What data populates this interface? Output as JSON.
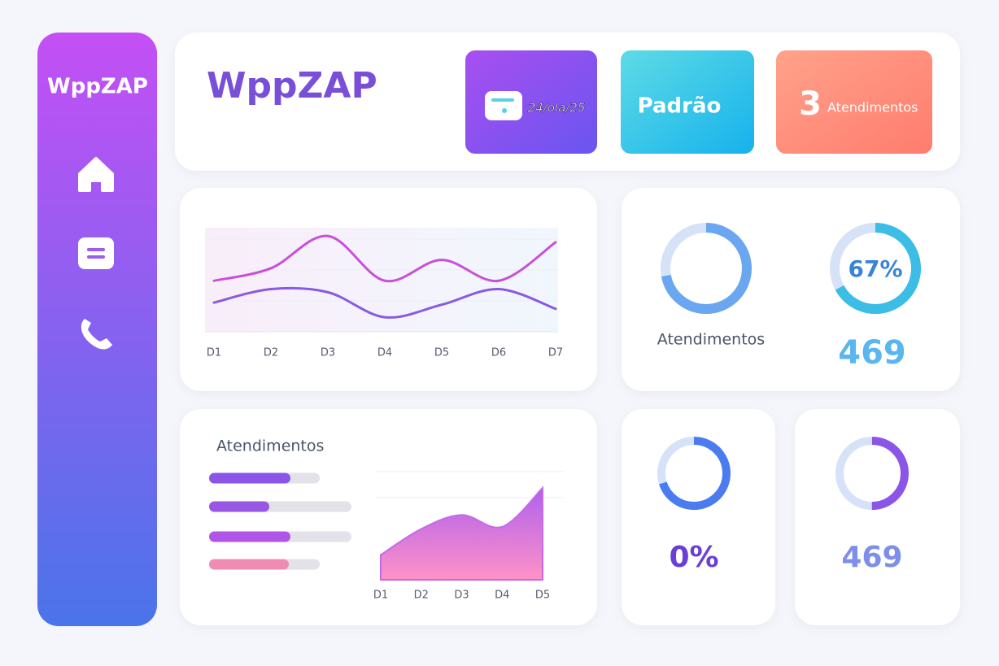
{
  "sidebar": {
    "brand": "WppZAP"
  },
  "header": {
    "title": "WppZAP",
    "date": "24/ola/25",
    "mode": "Padrão",
    "count": 3,
    "count_label": "Atendimentos"
  },
  "line_chart": {
    "type": "line",
    "categories": [
      "D1",
      "D2",
      "D3",
      "D4",
      "D5",
      "D6",
      "D7"
    ],
    "ylim": [
      0,
      100
    ],
    "series": [
      {
        "color": "#c850d8",
        "values": [
          49,
          61,
          92,
          49,
          69,
          49,
          86
        ]
      },
      {
        "color": "#8a5ae0",
        "values": [
          28,
          41,
          38,
          14,
          26,
          41,
          22
        ]
      }
    ]
  },
  "donut_panel": {
    "label": "Atendimentos",
    "total": 469,
    "rings": [
      {
        "value": 72,
        "color": "#6aa7f0"
      },
      {
        "value": 67,
        "label": "67%",
        "color": "#3cbde6"
      }
    ]
  },
  "bar_list": {
    "title": "Atendimentos",
    "values": [
      100,
      74,
      100,
      98
    ],
    "totals": [
      136,
      175,
      175,
      136
    ],
    "colors": [
      "#8a55e8",
      "#9858e4",
      "#b055e8",
      "#f08cb4"
    ]
  },
  "area_chart": {
    "type": "area",
    "categories": [
      "D1",
      "D2",
      "D3",
      "D4",
      "D5"
    ],
    "values": [
      23,
      47,
      60,
      49,
      85
    ],
    "ylim": [
      0,
      100
    ],
    "color": "#c46ae8"
  },
  "small_cards": [
    {
      "ring": 70,
      "text": "0%",
      "color": "#4a7cf0"
    },
    {
      "ring": 50,
      "text": 469,
      "color": "#8b55e8"
    }
  ]
}
